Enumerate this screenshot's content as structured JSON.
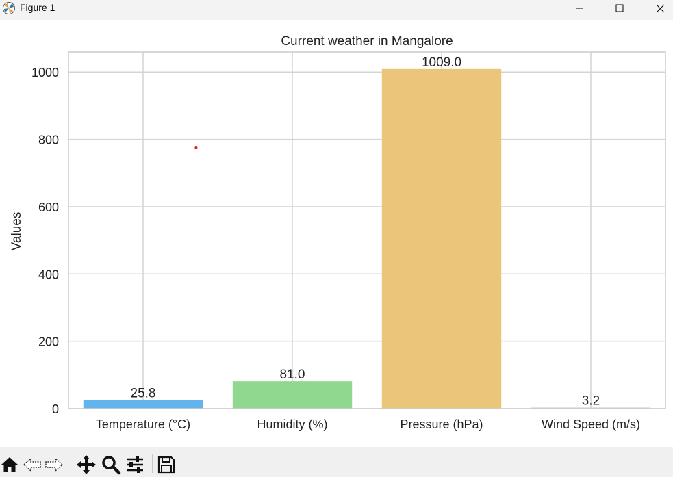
{
  "window": {
    "title": "Figure 1",
    "controls": {
      "minimize": "minimize",
      "maximize": "maximize",
      "close": "close"
    }
  },
  "toolbar": {
    "buttons": [
      "home-icon",
      "back-arrow-icon",
      "forward-arrow-icon",
      "pan-icon",
      "zoom-icon",
      "configure-subplots-icon",
      "save-icon"
    ]
  },
  "chart_data": {
    "type": "bar",
    "title": "Current weather in Mangalore",
    "xlabel": "",
    "ylabel": "Values",
    "categories": [
      "Temperature (°C)",
      "Humidity (%)",
      "Pressure (hPa)",
      "Wind Speed (m/s)"
    ],
    "values": [
      25.8,
      81.0,
      1009.0,
      3.2
    ],
    "value_labels": [
      "25.8",
      "81.0",
      "1009.0",
      "3.2"
    ],
    "colors": [
      "#63b3ed",
      "#90d890",
      "#ebc67a",
      "#d0d0d0"
    ],
    "ylim": [
      0,
      1059.45
    ],
    "yticks": [
      0,
      200,
      400,
      600,
      800,
      1000
    ],
    "ytick_labels": [
      "0",
      "200",
      "400",
      "600",
      "800",
      "1000"
    ],
    "grid": true,
    "grid_color": "#d4d4d4",
    "annotation_point": {
      "x": 0.8,
      "y": 775,
      "color": "#e02020"
    }
  }
}
